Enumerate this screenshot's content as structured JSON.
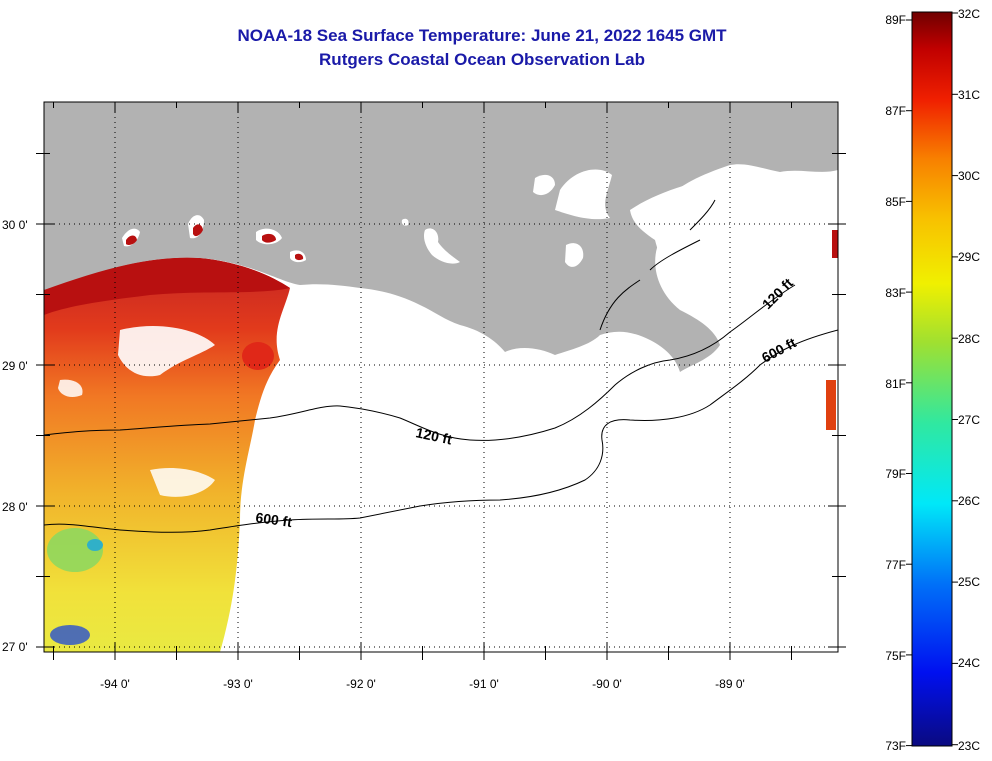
{
  "title": {
    "line1": "NOAA-18 Sea Surface Temperature:  June 21, 2022 1645 GMT",
    "line2": "Rutgers Coastal Ocean Observation Lab"
  },
  "axes": {
    "longitude_labels": [
      "-94 0'",
      "-93 0'",
      "-92 0'",
      "-91 0'",
      "-90 0'",
      "-89 0'"
    ],
    "latitude_labels": [
      "30 0'",
      "29 0'",
      "28 0'",
      "27 0'"
    ]
  },
  "contours": {
    "shallow_label": "120 ft",
    "deep_label": "600 ft"
  },
  "color_scale": {
    "fahrenheit_labels": [
      "89F",
      "87F",
      "85F",
      "83F",
      "81F",
      "79F",
      "77F",
      "75F",
      "73F"
    ],
    "celsius_labels": [
      "32C",
      "31C",
      "30C",
      "29C",
      "28C",
      "27C",
      "26C",
      "25C",
      "24C",
      "23C"
    ]
  },
  "colors": {
    "title": "#1a1aa8",
    "land": "#b2b2b2",
    "warm": "#c81010",
    "orange": "#f07010",
    "yellow": "#f0d020"
  }
}
